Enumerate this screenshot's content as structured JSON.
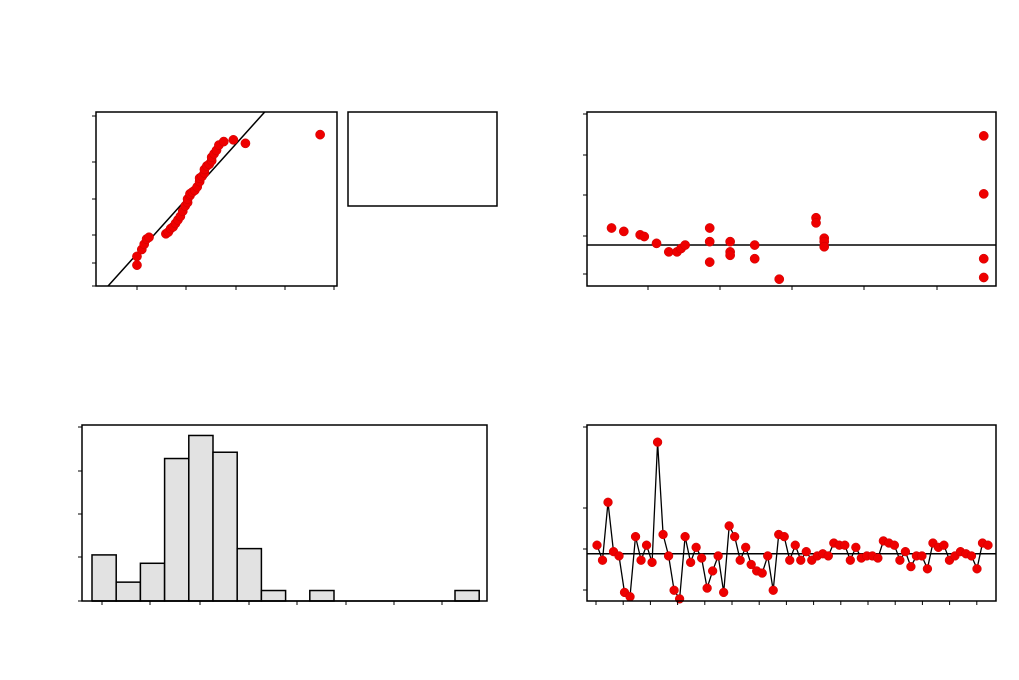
{
  "chart_data": [
    {
      "type": "scatter",
      "title": "",
      "xlabel": "",
      "ylabel": "",
      "xlim": [
        0,
        100
      ],
      "ylim": [
        0,
        100
      ],
      "legend": "legend-box-right",
      "reference_line": {
        "from": [
          5,
          0
        ],
        "to": [
          70,
          100
        ]
      },
      "points": [
        [
          17,
          12
        ],
        [
          17,
          17
        ],
        [
          19,
          21
        ],
        [
          20,
          24
        ],
        [
          21,
          27
        ],
        [
          22,
          28
        ],
        [
          29,
          30
        ],
        [
          30,
          31
        ],
        [
          31,
          33
        ],
        [
          32,
          34
        ],
        [
          33,
          36
        ],
        [
          34,
          38
        ],
        [
          35,
          40
        ],
        [
          36,
          43
        ],
        [
          37,
          46
        ],
        [
          38,
          48
        ],
        [
          38,
          50
        ],
        [
          39,
          52
        ],
        [
          39,
          53
        ],
        [
          40,
          54
        ],
        [
          41,
          55
        ],
        [
          42,
          57
        ],
        [
          43,
          60
        ],
        [
          43,
          62
        ],
        [
          44,
          63
        ],
        [
          45,
          65
        ],
        [
          45,
          67
        ],
        [
          46,
          69
        ],
        [
          47,
          70
        ],
        [
          48,
          72
        ],
        [
          48,
          74
        ],
        [
          49,
          76
        ],
        [
          50,
          78
        ],
        [
          51,
          81
        ],
        [
          53,
          83
        ],
        [
          57,
          84
        ],
        [
          62,
          82
        ],
        [
          93,
          87
        ]
      ]
    },
    {
      "type": "scatter",
      "title": "",
      "xlabel": "",
      "ylabel": "",
      "xlim": [
        0,
        100
      ],
      "ylim": [
        -1.2,
        3.9
      ],
      "reference_line_y": 0,
      "points": [
        [
          6,
          0.5
        ],
        [
          9,
          0.4
        ],
        [
          13,
          0.3
        ],
        [
          14,
          0.25
        ],
        [
          17,
          0.05
        ],
        [
          20,
          -0.2
        ],
        [
          22,
          -0.2
        ],
        [
          23,
          -0.1
        ],
        [
          24,
          0.0
        ],
        [
          30,
          0.5
        ],
        [
          30,
          0.1
        ],
        [
          30,
          -0.5
        ],
        [
          35,
          0.1
        ],
        [
          35,
          -0.2
        ],
        [
          35,
          -0.3
        ],
        [
          41,
          0.0
        ],
        [
          41,
          -0.4
        ],
        [
          47,
          -1.0
        ],
        [
          56,
          0.8
        ],
        [
          56,
          0.65
        ],
        [
          58,
          0.2
        ],
        [
          58,
          0.1
        ],
        [
          58,
          -0.05
        ],
        [
          97,
          3.2
        ],
        [
          97,
          1.5
        ],
        [
          97,
          -0.4
        ],
        [
          97,
          -0.95
        ]
      ]
    },
    {
      "type": "bar",
      "title": "",
      "xlabel": "",
      "ylabel": "",
      "ylim": [
        0,
        42
      ],
      "bins": 16,
      "values": [
        11,
        4.5,
        9,
        34,
        39.5,
        35.5,
        12.5,
        2.5,
        0,
        2.5,
        0,
        0,
        0,
        0,
        0,
        2.5
      ]
    },
    {
      "type": "line",
      "title": "",
      "xlabel": "",
      "ylabel": "",
      "ylim": [
        -1.1,
        3.0
      ],
      "reference_line_y": 0,
      "values": [
        0.2,
        -0.15,
        1.2,
        0.05,
        -0.05,
        -0.9,
        -1.0,
        0.4,
        -0.15,
        0.2,
        -0.2,
        2.6,
        0.45,
        -0.05,
        -0.85,
        -1.05,
        0.4,
        -0.2,
        0.15,
        -0.1,
        -0.8,
        -0.4,
        -0.05,
        -0.9,
        0.65,
        0.4,
        -0.15,
        0.15,
        -0.25,
        -0.4,
        -0.45,
        -0.05,
        -0.85,
        0.45,
        0.4,
        -0.15,
        0.2,
        -0.15,
        0.05,
        -0.15,
        -0.05,
        0.0,
        -0.05,
        0.25,
        0.2,
        0.2,
        -0.15,
        0.15,
        -0.1,
        -0.05,
        -0.05,
        -0.1,
        0.3,
        0.25,
        0.2,
        -0.15,
        0.05,
        -0.3,
        -0.05,
        -0.05,
        -0.35,
        0.25,
        0.15,
        0.2,
        -0.15,
        -0.05,
        0.05,
        0.0,
        -0.05,
        -0.35,
        0.25,
        0.2
      ]
    }
  ]
}
